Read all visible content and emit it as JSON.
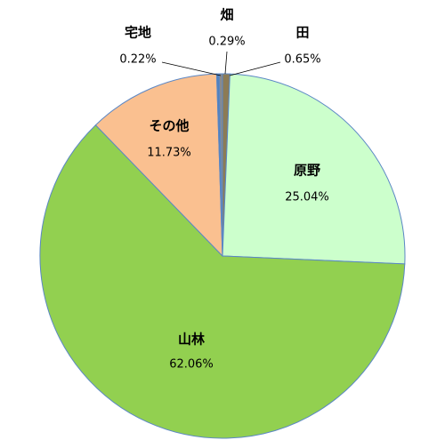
{
  "chart_data": {
    "type": "pie",
    "categories": [
      "田",
      "原野",
      "山林",
      "その他",
      "宅地",
      "畑"
    ],
    "values": [
      0.65,
      25.04,
      62.06,
      11.73,
      0.22,
      0.29
    ],
    "value_labels": [
      "0.65%",
      "25.04%",
      "62.06%",
      "11.73%",
      "0.22%",
      "0.29%"
    ],
    "colors": [
      "#8c7b55",
      "#ccffcc",
      "#92d050",
      "#fac090",
      "#4f81bd",
      "#8a8a8a"
    ]
  }
}
